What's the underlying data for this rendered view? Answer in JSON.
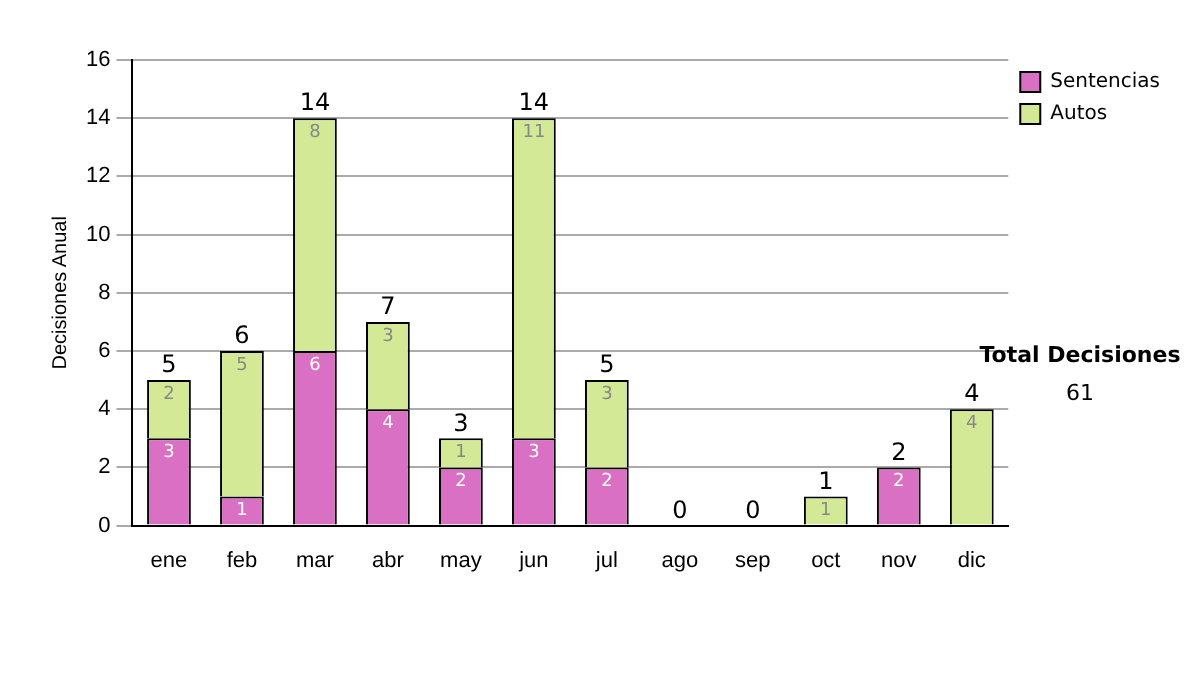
{
  "chart_data": {
    "type": "bar",
    "stacked": true,
    "ylabel": "Decisiones Anual",
    "categories": [
      "ene",
      "feb",
      "mar",
      "abr",
      "may",
      "jun",
      "jul",
      "ago",
      "sep",
      "oct",
      "nov",
      "dic"
    ],
    "series": [
      {
        "name": "Sentencias",
        "color": "#d970c4",
        "values": [
          3,
          1,
          6,
          4,
          2,
          3,
          2,
          0,
          0,
          0,
          2,
          0
        ],
        "value_labels": [
          "3",
          "1",
          "6",
          "4",
          "2",
          "3",
          "2",
          null,
          null,
          null,
          "2",
          null
        ]
      },
      {
        "name": "Autos",
        "color": "#d4e996",
        "values": [
          2,
          5,
          8,
          3,
          1,
          11,
          3,
          0,
          0,
          1,
          0,
          4
        ],
        "value_labels": [
          "2",
          "5",
          "8",
          "3",
          "1",
          "11",
          "3",
          null,
          null,
          "1",
          null,
          "4"
        ]
      }
    ],
    "totals": [
      "5",
      "6",
      "14",
      "7",
      "3",
      "14",
      "5",
      "0",
      "0",
      "1",
      "2",
      "4"
    ],
    "ylim": [
      0,
      16
    ],
    "yticks": [
      0,
      2,
      4,
      6,
      8,
      10,
      12,
      14,
      16
    ],
    "grid": "y",
    "legend": "right",
    "annotations": [
      "Total Decisiones",
      "61"
    ]
  }
}
